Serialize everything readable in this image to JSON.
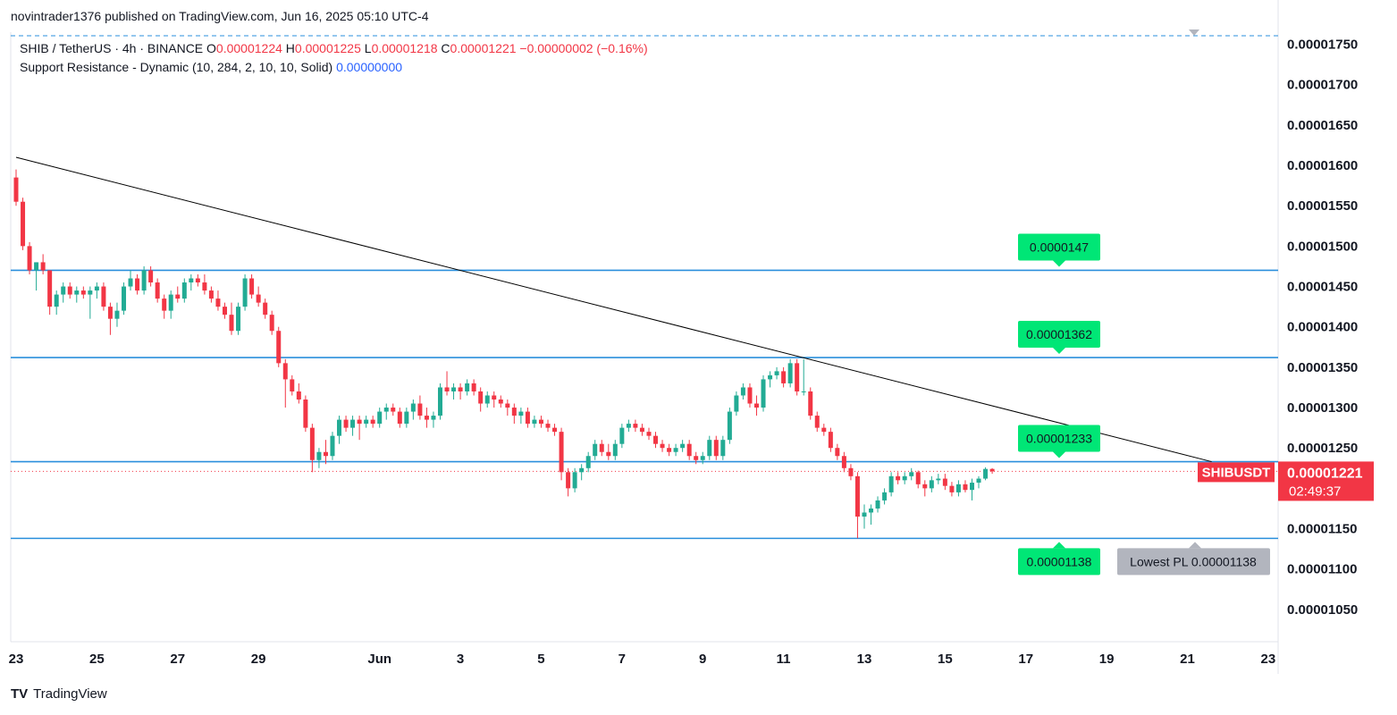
{
  "header": {
    "publish_line": "novintrader1376 published on TradingView.com, Jun 16, 2025 05:10 UTC-4"
  },
  "legend": {
    "symbol_line": "SHIB / TetherUS · 4h · BINANCE",
    "open_label": "O",
    "open": "0.00001224",
    "high_label": "H",
    "high": "0.00001225",
    "low_label": "L",
    "low": "0.00001218",
    "close_label": "C",
    "close": "0.00001221",
    "change": "−0.00000002 (−0.16%)",
    "indicator": "Support Resistance - Dynamic (10, 284, 2, 10, 10, Solid)",
    "indicator_value": "0.00000000"
  },
  "footer": {
    "brand": "TradingView",
    "logo_glyph": "TV"
  },
  "colors": {
    "up": "#22ab94",
    "down": "#f23645",
    "level": "#2962ff",
    "level_line": "#2a8fdc",
    "label_green": "#00e676",
    "trend": "#000000",
    "price_tag": "#f23645",
    "gray_tag": "#b2b5be",
    "axis_text": "#131722",
    "blue_value": "#2962ff"
  },
  "chart_data": {
    "type": "candlestick",
    "symbol": "SHIBUSDT",
    "ylim": [
      1.01e-05,
      1.765e-05
    ],
    "y_ticks": [
      "0.00001750",
      "0.00001700",
      "0.00001650",
      "0.00001600",
      "0.00001550",
      "0.00001500",
      "0.00001450",
      "0.00001400",
      "0.00001350",
      "0.00001300",
      "0.00001250",
      "0.00001150",
      "0.00001100",
      "0.00001050"
    ],
    "y_tick_values": [
      1.75e-05,
      1.7e-05,
      1.65e-05,
      1.6e-05,
      1.55e-05,
      1.5e-05,
      1.45e-05,
      1.4e-05,
      1.35e-05,
      1.3e-05,
      1.25e-05,
      1.15e-05,
      1.1e-05,
      1.05e-05
    ],
    "x_ticks": [
      {
        "label": "23",
        "day": -8
      },
      {
        "label": "25",
        "day": -6
      },
      {
        "label": "27",
        "day": -4
      },
      {
        "label": "29",
        "day": -2
      },
      {
        "label": "Jun",
        "day": 1
      },
      {
        "label": "3",
        "day": 3
      },
      {
        "label": "5",
        "day": 5
      },
      {
        "label": "7",
        "day": 7
      },
      {
        "label": "9",
        "day": 9
      },
      {
        "label": "11",
        "day": 11
      },
      {
        "label": "13",
        "day": 13
      },
      {
        "label": "15",
        "day": 15
      },
      {
        "label": "17",
        "day": 17
      },
      {
        "label": "19",
        "day": 19
      },
      {
        "label": "21",
        "day": 21
      },
      {
        "label": "23",
        "day": 23
      }
    ],
    "current_price": {
      "symbol": "SHIBUSDT",
      "price": "0.00001221",
      "value": 1.221e-05,
      "countdown": "02:49:37"
    },
    "levels": [
      {
        "value": 1.47e-05,
        "label": "0.0000147"
      },
      {
        "value": 1.362e-05,
        "label": "0.00001362"
      },
      {
        "value": 1.233e-05,
        "label": "0.00001233"
      },
      {
        "value": 1.138e-05,
        "label": "0.00001138"
      }
    ],
    "lowest_pl": {
      "value": 1.138e-05,
      "label": "Lowest PL 0.00001138"
    },
    "trendline": [
      {
        "day": -8,
        "value": 1.61e-05
      },
      {
        "day": 21.6,
        "value": 1.233e-05
      }
    ],
    "candles": [
      {
        "d": -8.0,
        "o": 1.585,
        "h": 1.595,
        "l": 1.55,
        "c": 1.555
      },
      {
        "d": -7.833,
        "o": 1.555,
        "h": 1.56,
        "l": 1.495,
        "c": 1.5
      },
      {
        "d": -7.667,
        "o": 1.5,
        "h": 1.505,
        "l": 1.465,
        "c": 1.47
      },
      {
        "d": -7.5,
        "o": 1.47,
        "h": 1.48,
        "l": 1.445,
        "c": 1.48
      },
      {
        "d": -7.333,
        "o": 1.48,
        "h": 1.49,
        "l": 1.465,
        "c": 1.47
      },
      {
        "d": -7.167,
        "o": 1.47,
        "h": 1.47,
        "l": 1.415,
        "c": 1.425
      },
      {
        "d": -7.0,
        "o": 1.425,
        "h": 1.445,
        "l": 1.415,
        "c": 1.44
      },
      {
        "d": -6.833,
        "o": 1.44,
        "h": 1.455,
        "l": 1.43,
        "c": 1.45
      },
      {
        "d": -6.667,
        "o": 1.45,
        "h": 1.455,
        "l": 1.435,
        "c": 1.44
      },
      {
        "d": -6.5,
        "o": 1.44,
        "h": 1.45,
        "l": 1.43,
        "c": 1.445
      },
      {
        "d": -6.333,
        "o": 1.445,
        "h": 1.45,
        "l": 1.435,
        "c": 1.44
      },
      {
        "d": -6.167,
        "o": 1.44,
        "h": 1.45,
        "l": 1.41,
        "c": 1.445
      },
      {
        "d": -6.0,
        "o": 1.445,
        "h": 1.455,
        "l": 1.435,
        "c": 1.45
      },
      {
        "d": -5.833,
        "o": 1.45,
        "h": 1.455,
        "l": 1.42,
        "c": 1.425
      },
      {
        "d": -5.667,
        "o": 1.425,
        "h": 1.43,
        "l": 1.39,
        "c": 1.41
      },
      {
        "d": -5.5,
        "o": 1.41,
        "h": 1.43,
        "l": 1.4,
        "c": 1.42
      },
      {
        "d": -5.333,
        "o": 1.42,
        "h": 1.455,
        "l": 1.415,
        "c": 1.45
      },
      {
        "d": -5.167,
        "o": 1.45,
        "h": 1.47,
        "l": 1.445,
        "c": 1.46
      },
      {
        "d": -5.0,
        "o": 1.46,
        "h": 1.465,
        "l": 1.44,
        "c": 1.445
      },
      {
        "d": -4.833,
        "o": 1.445,
        "h": 1.475,
        "l": 1.44,
        "c": 1.47
      },
      {
        "d": -4.667,
        "o": 1.47,
        "h": 1.475,
        "l": 1.45,
        "c": 1.455
      },
      {
        "d": -4.5,
        "o": 1.455,
        "h": 1.46,
        "l": 1.43,
        "c": 1.435
      },
      {
        "d": -4.333,
        "o": 1.435,
        "h": 1.44,
        "l": 1.41,
        "c": 1.42
      },
      {
        "d": -4.167,
        "o": 1.42,
        "h": 1.445,
        "l": 1.41,
        "c": 1.44
      },
      {
        "d": -4.0,
        "o": 1.44,
        "h": 1.45,
        "l": 1.43,
        "c": 1.435
      },
      {
        "d": -3.833,
        "o": 1.435,
        "h": 1.46,
        "l": 1.43,
        "c": 1.455
      },
      {
        "d": -3.667,
        "o": 1.455,
        "h": 1.465,
        "l": 1.445,
        "c": 1.46
      },
      {
        "d": -3.5,
        "o": 1.46,
        "h": 1.465,
        "l": 1.45,
        "c": 1.455
      },
      {
        "d": -3.333,
        "o": 1.455,
        "h": 1.465,
        "l": 1.44,
        "c": 1.445
      },
      {
        "d": -3.167,
        "o": 1.445,
        "h": 1.45,
        "l": 1.43,
        "c": 1.435
      },
      {
        "d": -3.0,
        "o": 1.435,
        "h": 1.445,
        "l": 1.42,
        "c": 1.425
      },
      {
        "d": -2.833,
        "o": 1.425,
        "h": 1.43,
        "l": 1.41,
        "c": 1.415
      },
      {
        "d": -2.667,
        "o": 1.415,
        "h": 1.43,
        "l": 1.39,
        "c": 1.395
      },
      {
        "d": -2.5,
        "o": 1.395,
        "h": 1.43,
        "l": 1.39,
        "c": 1.425
      },
      {
        "d": -2.333,
        "o": 1.425,
        "h": 1.465,
        "l": 1.42,
        "c": 1.46
      },
      {
        "d": -2.167,
        "o": 1.46,
        "h": 1.465,
        "l": 1.435,
        "c": 1.44
      },
      {
        "d": -2.0,
        "o": 1.44,
        "h": 1.45,
        "l": 1.425,
        "c": 1.43
      },
      {
        "d": -1.833,
        "o": 1.43,
        "h": 1.435,
        "l": 1.41,
        "c": 1.415
      },
      {
        "d": -1.667,
        "o": 1.415,
        "h": 1.42,
        "l": 1.39,
        "c": 1.395
      },
      {
        "d": -1.5,
        "o": 1.395,
        "h": 1.4,
        "l": 1.35,
        "c": 1.355
      },
      {
        "d": -1.333,
        "o": 1.355,
        "h": 1.36,
        "l": 1.3,
        "c": 1.335
      },
      {
        "d": -1.167,
        "o": 1.335,
        "h": 1.34,
        "l": 1.315,
        "c": 1.32
      },
      {
        "d": -1.0,
        "o": 1.32,
        "h": 1.33,
        "l": 1.305,
        "c": 1.31
      },
      {
        "d": -0.833,
        "o": 1.31,
        "h": 1.315,
        "l": 1.27,
        "c": 1.275
      },
      {
        "d": -0.667,
        "o": 1.275,
        "h": 1.28,
        "l": 1.22,
        "c": 1.235
      },
      {
        "d": -0.5,
        "o": 1.235,
        "h": 1.25,
        "l": 1.225,
        "c": 1.245
      },
      {
        "d": -0.333,
        "o": 1.245,
        "h": 1.26,
        "l": 1.23,
        "c": 1.24
      },
      {
        "d": -0.167,
        "o": 1.24,
        "h": 1.27,
        "l": 1.235,
        "c": 1.265
      },
      {
        "d": 0.0,
        "o": 1.265,
        "h": 1.29,
        "l": 1.255,
        "c": 1.285
      },
      {
        "d": 0.167,
        "o": 1.285,
        "h": 1.29,
        "l": 1.27,
        "c": 1.275
      },
      {
        "d": 0.333,
        "o": 1.275,
        "h": 1.29,
        "l": 1.265,
        "c": 1.285
      },
      {
        "d": 0.5,
        "o": 1.285,
        "h": 1.29,
        "l": 1.26,
        "c": 1.28
      },
      {
        "d": 0.667,
        "o": 1.28,
        "h": 1.29,
        "l": 1.275,
        "c": 1.285
      },
      {
        "d": 0.833,
        "o": 1.285,
        "h": 1.29,
        "l": 1.275,
        "c": 1.28
      },
      {
        "d": 1.0,
        "o": 1.28,
        "h": 1.3,
        "l": 1.275,
        "c": 1.295
      },
      {
        "d": 1.167,
        "o": 1.295,
        "h": 1.305,
        "l": 1.285,
        "c": 1.3
      },
      {
        "d": 1.333,
        "o": 1.3,
        "h": 1.305,
        "l": 1.29,
        "c": 1.295
      },
      {
        "d": 1.5,
        "o": 1.295,
        "h": 1.3,
        "l": 1.275,
        "c": 1.28
      },
      {
        "d": 1.667,
        "o": 1.28,
        "h": 1.3,
        "l": 1.275,
        "c": 1.295
      },
      {
        "d": 1.833,
        "o": 1.295,
        "h": 1.31,
        "l": 1.285,
        "c": 1.305
      },
      {
        "d": 2.0,
        "o": 1.305,
        "h": 1.315,
        "l": 1.285,
        "c": 1.29
      },
      {
        "d": 2.167,
        "o": 1.29,
        "h": 1.3,
        "l": 1.275,
        "c": 1.285
      },
      {
        "d": 2.333,
        "o": 1.285,
        "h": 1.295,
        "l": 1.275,
        "c": 1.29
      },
      {
        "d": 2.5,
        "o": 1.29,
        "h": 1.33,
        "l": 1.285,
        "c": 1.325
      },
      {
        "d": 2.667,
        "o": 1.325,
        "h": 1.345,
        "l": 1.315,
        "c": 1.32
      },
      {
        "d": 2.833,
        "o": 1.32,
        "h": 1.33,
        "l": 1.31,
        "c": 1.325
      },
      {
        "d": 3.0,
        "o": 1.325,
        "h": 1.33,
        "l": 1.31,
        "c": 1.32
      },
      {
        "d": 3.167,
        "o": 1.32,
        "h": 1.335,
        "l": 1.315,
        "c": 1.33
      },
      {
        "d": 3.333,
        "o": 1.33,
        "h": 1.335,
        "l": 1.315,
        "c": 1.32
      },
      {
        "d": 3.5,
        "o": 1.32,
        "h": 1.325,
        "l": 1.295,
        "c": 1.305
      },
      {
        "d": 3.667,
        "o": 1.305,
        "h": 1.32,
        "l": 1.3,
        "c": 1.315
      },
      {
        "d": 3.833,
        "o": 1.315,
        "h": 1.32,
        "l": 1.3,
        "c": 1.31
      },
      {
        "d": 4.0,
        "o": 1.31,
        "h": 1.315,
        "l": 1.3,
        "c": 1.305
      },
      {
        "d": 4.167,
        "o": 1.305,
        "h": 1.31,
        "l": 1.29,
        "c": 1.3
      },
      {
        "d": 4.333,
        "o": 1.3,
        "h": 1.305,
        "l": 1.28,
        "c": 1.29
      },
      {
        "d": 4.5,
        "o": 1.29,
        "h": 1.3,
        "l": 1.28,
        "c": 1.295
      },
      {
        "d": 4.667,
        "o": 1.295,
        "h": 1.3,
        "l": 1.275,
        "c": 1.28
      },
      {
        "d": 4.833,
        "o": 1.28,
        "h": 1.29,
        "l": 1.275,
        "c": 1.285
      },
      {
        "d": 5.0,
        "o": 1.285,
        "h": 1.29,
        "l": 1.275,
        "c": 1.28
      },
      {
        "d": 5.167,
        "o": 1.28,
        "h": 1.285,
        "l": 1.27,
        "c": 1.275
      },
      {
        "d": 5.333,
        "o": 1.275,
        "h": 1.28,
        "l": 1.265,
        "c": 1.27
      },
      {
        "d": 5.5,
        "o": 1.27,
        "h": 1.275,
        "l": 1.21,
        "c": 1.22
      },
      {
        "d": 5.667,
        "o": 1.22,
        "h": 1.225,
        "l": 1.19,
        "c": 1.2
      },
      {
        "d": 5.833,
        "o": 1.2,
        "h": 1.225,
        "l": 1.195,
        "c": 1.22
      },
      {
        "d": 6.0,
        "o": 1.22,
        "h": 1.23,
        "l": 1.21,
        "c": 1.225
      },
      {
        "d": 6.167,
        "o": 1.225,
        "h": 1.245,
        "l": 1.22,
        "c": 1.24
      },
      {
        "d": 6.333,
        "o": 1.24,
        "h": 1.26,
        "l": 1.235,
        "c": 1.255
      },
      {
        "d": 6.5,
        "o": 1.255,
        "h": 1.26,
        "l": 1.24,
        "c": 1.245
      },
      {
        "d": 6.667,
        "o": 1.245,
        "h": 1.255,
        "l": 1.235,
        "c": 1.24
      },
      {
        "d": 6.833,
        "o": 1.24,
        "h": 1.26,
        "l": 1.235,
        "c": 1.255
      },
      {
        "d": 7.0,
        "o": 1.255,
        "h": 1.28,
        "l": 1.25,
        "c": 1.275
      },
      {
        "d": 7.167,
        "o": 1.275,
        "h": 1.285,
        "l": 1.27,
        "c": 1.28
      },
      {
        "d": 7.333,
        "o": 1.28,
        "h": 1.285,
        "l": 1.27,
        "c": 1.275
      },
      {
        "d": 7.5,
        "o": 1.275,
        "h": 1.28,
        "l": 1.265,
        "c": 1.27
      },
      {
        "d": 7.667,
        "o": 1.27,
        "h": 1.275,
        "l": 1.26,
        "c": 1.265
      },
      {
        "d": 7.833,
        "o": 1.265,
        "h": 1.27,
        "l": 1.25,
        "c": 1.255
      },
      {
        "d": 8.0,
        "o": 1.255,
        "h": 1.26,
        "l": 1.245,
        "c": 1.25
      },
      {
        "d": 8.167,
        "o": 1.25,
        "h": 1.255,
        "l": 1.24,
        "c": 1.245
      },
      {
        "d": 8.333,
        "o": 1.245,
        "h": 1.255,
        "l": 1.24,
        "c": 1.25
      },
      {
        "d": 8.5,
        "o": 1.25,
        "h": 1.26,
        "l": 1.245,
        "c": 1.255
      },
      {
        "d": 8.667,
        "o": 1.255,
        "h": 1.26,
        "l": 1.235,
        "c": 1.24
      },
      {
        "d": 8.833,
        "o": 1.24,
        "h": 1.245,
        "l": 1.23,
        "c": 1.235
      },
      {
        "d": 9.0,
        "o": 1.235,
        "h": 1.245,
        "l": 1.23,
        "c": 1.24
      },
      {
        "d": 9.167,
        "o": 1.24,
        "h": 1.265,
        "l": 1.235,
        "c": 1.26
      },
      {
        "d": 9.333,
        "o": 1.26,
        "h": 1.265,
        "l": 1.235,
        "c": 1.24
      },
      {
        "d": 9.5,
        "o": 1.24,
        "h": 1.265,
        "l": 1.235,
        "c": 1.26
      },
      {
        "d": 9.667,
        "o": 1.26,
        "h": 1.3,
        "l": 1.255,
        "c": 1.295
      },
      {
        "d": 9.833,
        "o": 1.295,
        "h": 1.32,
        "l": 1.29,
        "c": 1.315
      },
      {
        "d": 10.0,
        "o": 1.315,
        "h": 1.33,
        "l": 1.31,
        "c": 1.325
      },
      {
        "d": 10.167,
        "o": 1.325,
        "h": 1.33,
        "l": 1.3,
        "c": 1.305
      },
      {
        "d": 10.333,
        "o": 1.305,
        "h": 1.315,
        "l": 1.29,
        "c": 1.3
      },
      {
        "d": 10.5,
        "o": 1.3,
        "h": 1.34,
        "l": 1.295,
        "c": 1.335
      },
      {
        "d": 10.667,
        "o": 1.335,
        "h": 1.345,
        "l": 1.325,
        "c": 1.34
      },
      {
        "d": 10.833,
        "o": 1.34,
        "h": 1.35,
        "l": 1.335,
        "c": 1.345
      },
      {
        "d": 11.0,
        "o": 1.345,
        "h": 1.35,
        "l": 1.325,
        "c": 1.33
      },
      {
        "d": 11.167,
        "o": 1.33,
        "h": 1.36,
        "l": 1.325,
        "c": 1.355
      },
      {
        "d": 11.333,
        "o": 1.355,
        "h": 1.36,
        "l": 1.315,
        "c": 1.32
      },
      {
        "d": 11.5,
        "o": 1.32,
        "h": 1.36,
        "l": 1.315,
        "c": 1.32
      },
      {
        "d": 11.667,
        "o": 1.32,
        "h": 1.325,
        "l": 1.285,
        "c": 1.29
      },
      {
        "d": 11.833,
        "o": 1.29,
        "h": 1.295,
        "l": 1.27,
        "c": 1.275
      },
      {
        "d": 12.0,
        "o": 1.275,
        "h": 1.28,
        "l": 1.265,
        "c": 1.27
      },
      {
        "d": 12.167,
        "o": 1.27,
        "h": 1.275,
        "l": 1.245,
        "c": 1.25
      },
      {
        "d": 12.333,
        "o": 1.25,
        "h": 1.255,
        "l": 1.235,
        "c": 1.24
      },
      {
        "d": 12.5,
        "o": 1.24,
        "h": 1.245,
        "l": 1.22,
        "c": 1.225
      },
      {
        "d": 12.667,
        "o": 1.225,
        "h": 1.23,
        "l": 1.21,
        "c": 1.215
      },
      {
        "d": 12.833,
        "o": 1.215,
        "h": 1.22,
        "l": 1.138,
        "c": 1.165
      },
      {
        "d": 13.0,
        "o": 1.165,
        "h": 1.18,
        "l": 1.15,
        "c": 1.17
      },
      {
        "d": 13.167,
        "o": 1.17,
        "h": 1.18,
        "l": 1.155,
        "c": 1.175
      },
      {
        "d": 13.333,
        "o": 1.175,
        "h": 1.19,
        "l": 1.17,
        "c": 1.185
      },
      {
        "d": 13.5,
        "o": 1.185,
        "h": 1.2,
        "l": 1.18,
        "c": 1.195
      },
      {
        "d": 13.667,
        "o": 1.195,
        "h": 1.22,
        "l": 1.19,
        "c": 1.215
      },
      {
        "d": 13.833,
        "o": 1.215,
        "h": 1.22,
        "l": 1.205,
        "c": 1.21
      },
      {
        "d": 14.0,
        "o": 1.21,
        "h": 1.22,
        "l": 1.205,
        "c": 1.215
      },
      {
        "d": 14.167,
        "o": 1.215,
        "h": 1.225,
        "l": 1.21,
        "c": 1.22
      },
      {
        "d": 14.333,
        "o": 1.22,
        "h": 1.222,
        "l": 1.2,
        "c": 1.205
      },
      {
        "d": 14.5,
        "o": 1.205,
        "h": 1.21,
        "l": 1.19,
        "c": 1.2
      },
      {
        "d": 14.667,
        "o": 1.2,
        "h": 1.215,
        "l": 1.195,
        "c": 1.21
      },
      {
        "d": 14.833,
        "o": 1.21,
        "h": 1.218,
        "l": 1.205,
        "c": 1.212
      },
      {
        "d": 15.0,
        "o": 1.212,
        "h": 1.218,
        "l": 1.198,
        "c": 1.203
      },
      {
        "d": 15.167,
        "o": 1.203,
        "h": 1.208,
        "l": 1.19,
        "c": 1.195
      },
      {
        "d": 15.333,
        "o": 1.195,
        "h": 1.21,
        "l": 1.19,
        "c": 1.205
      },
      {
        "d": 15.5,
        "o": 1.205,
        "h": 1.21,
        "l": 1.195,
        "c": 1.198
      },
      {
        "d": 15.667,
        "o": 1.198,
        "h": 1.212,
        "l": 1.185,
        "c": 1.207
      },
      {
        "d": 15.833,
        "o": 1.207,
        "h": 1.215,
        "l": 1.2,
        "c": 1.212
      },
      {
        "d": 16.0,
        "o": 1.212,
        "h": 1.226,
        "l": 1.21,
        "c": 1.224
      },
      {
        "d": 16.167,
        "o": 1.224,
        "h": 1.225,
        "l": 1.218,
        "c": 1.221
      }
    ]
  }
}
